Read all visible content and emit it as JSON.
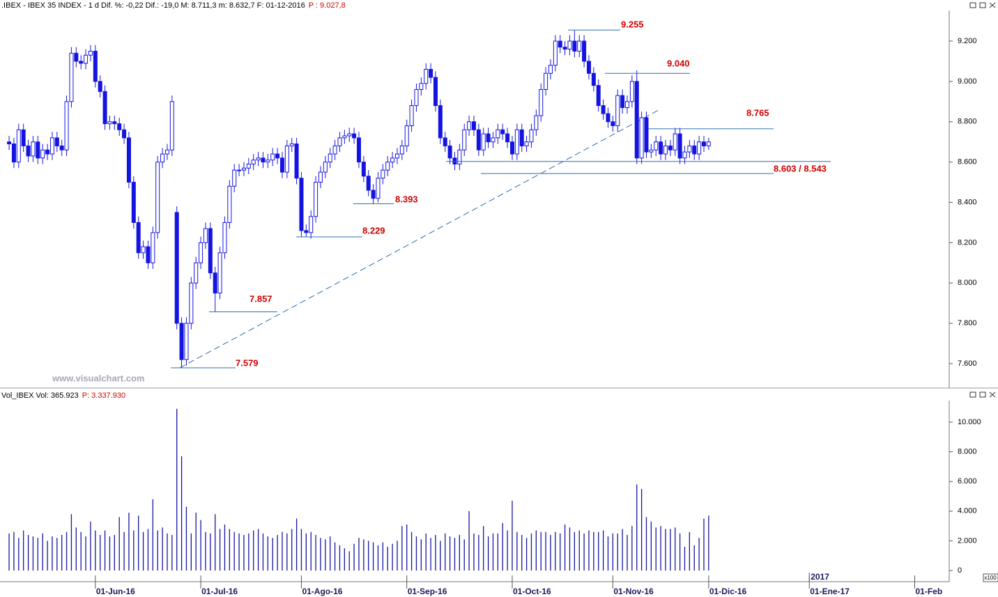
{
  "chart_data": [
    {
      "type": "candlestick",
      "title": ".IBEX - IBEX 35 INDEX - 1 d Dif. %: -0,22 Dif.: -19,0 M: 8.711,3 m: 8.632,7 F: 01-12-2016",
      "title_extra": "P : 9.027,8",
      "watermark": "www.visualchart.com",
      "color": "#1414e0",
      "xlim": [
        -1.9,
        196.2
      ],
      "ylim": [
        7479,
        9352
      ],
      "yticks": [
        {
          "value": 7600,
          "label": "7.600"
        },
        {
          "value": 7800,
          "label": "7.800"
        },
        {
          "value": 8000,
          "label": "8.000"
        },
        {
          "value": 8200,
          "label": "8.200"
        },
        {
          "value": 8400,
          "label": "8.400"
        },
        {
          "value": 8600,
          "label": "8.600"
        },
        {
          "value": 8800,
          "label": "8.800"
        },
        {
          "value": 9000,
          "label": "9.000"
        },
        {
          "value": 9200,
          "label": "9.200"
        }
      ],
      "open": [
        8700,
        8690,
        8600,
        8760,
        8680,
        8630,
        8700,
        8620,
        8660,
        8640,
        8720,
        8680,
        8660,
        8900,
        9140,
        9100,
        9090,
        9130,
        9150,
        9000,
        8950,
        8790,
        8800,
        8790,
        8760,
        8720,
        8500,
        8300,
        8150,
        8180,
        8100,
        8250,
        8600,
        8640,
        8660,
        8350,
        7800,
        7620,
        7800,
        8000,
        8100,
        8200,
        8270,
        8050,
        7950,
        8150,
        8300,
        8480,
        8560,
        8560,
        8570,
        8590,
        8610,
        8620,
        8600,
        8610,
        8640,
        8620,
        8550,
        8680,
        8690,
        8520,
        8260,
        8250,
        8330,
        8500,
        8550,
        8600,
        8640,
        8680,
        8720,
        8730,
        8740,
        8720,
        8600,
        8530,
        8460,
        8420,
        8520,
        8560,
        8600,
        8620,
        8640,
        8680,
        8780,
        8880,
        8960,
        8990,
        9060,
        9020,
        8880,
        8720,
        8680,
        8620,
        8590,
        8660,
        8760,
        8800,
        8760,
        8660,
        8740,
        8700,
        8720,
        8760,
        8740,
        8700,
        8640,
        8760,
        8680,
        8700,
        8760,
        8830,
        8960,
        9040,
        9080,
        9200,
        9170,
        9160,
        9200,
        9150,
        9200,
        9100,
        9040,
        8980,
        8880,
        8840,
        8800,
        8780,
        8930,
        8870,
        8900,
        9000,
        8620,
        8820,
        8650,
        8660,
        8700,
        8640,
        8680,
        8660,
        8740,
        8620,
        8650,
        8680,
        8640,
        8700,
        8680
      ],
      "high": [
        8730,
        8720,
        8790,
        8790,
        8710,
        8730,
        8730,
        8690,
        8690,
        8750,
        8750,
        8710,
        8930,
        9170,
        9170,
        9130,
        9160,
        9180,
        9180,
        9030,
        8980,
        8830,
        8830,
        8820,
        8790,
        8750,
        8530,
        8330,
        8210,
        8210,
        8280,
        8630,
        8670,
        8690,
        8930,
        8380,
        7830,
        7830,
        8030,
        8130,
        8230,
        8300,
        8300,
        8080,
        8180,
        8330,
        8510,
        8590,
        8590,
        8600,
        8620,
        8640,
        8650,
        8650,
        8640,
        8670,
        8670,
        8650,
        8710,
        8720,
        8720,
        8550,
        8290,
        8360,
        8530,
        8580,
        8630,
        8670,
        8710,
        8750,
        8760,
        8770,
        8770,
        8750,
        8630,
        8560,
        8490,
        8550,
        8590,
        8630,
        8650,
        8670,
        8710,
        8810,
        8910,
        8990,
        9020,
        9090,
        9090,
        9050,
        8910,
        8750,
        8710,
        8650,
        8690,
        8790,
        8830,
        8830,
        8790,
        8770,
        8770,
        8750,
        8790,
        8790,
        8770,
        8730,
        8790,
        8790,
        8730,
        8790,
        8860,
        8990,
        9070,
        9110,
        9230,
        9230,
        9200,
        9230,
        9255,
        9230,
        9230,
        9130,
        9070,
        9010,
        8910,
        8870,
        8830,
        8960,
        8960,
        8930,
        9030,
        9055,
        8850,
        8850,
        8690,
        8730,
        8730,
        8710,
        8710,
        8770,
        8770,
        8680,
        8710,
        8710,
        8730,
        8730,
        8720
      ],
      "low": [
        8660,
        8570,
        8570,
        8650,
        8600,
        8600,
        8590,
        8590,
        8610,
        8610,
        8650,
        8630,
        8630,
        8870,
        9070,
        9060,
        9060,
        9100,
        8970,
        8920,
        8760,
        8760,
        8760,
        8730,
        8690,
        8470,
        8270,
        8120,
        8120,
        8070,
        8070,
        8220,
        8570,
        8610,
        8630,
        7770,
        7579,
        7590,
        7770,
        7970,
        8070,
        8170,
        8020,
        7857,
        7920,
        8120,
        8270,
        8450,
        8530,
        8530,
        8540,
        8560,
        8580,
        8570,
        8570,
        8580,
        8590,
        8520,
        8520,
        8650,
        8490,
        8230,
        8229,
        8220,
        8300,
        8470,
        8520,
        8570,
        8610,
        8650,
        8690,
        8700,
        8690,
        8570,
        8500,
        8430,
        8393,
        8400,
        8490,
        8530,
        8570,
        8590,
        8610,
        8650,
        8750,
        8850,
        8930,
        8960,
        8990,
        8850,
        8690,
        8650,
        8590,
        8560,
        8560,
        8630,
        8730,
        8730,
        8630,
        8630,
        8670,
        8670,
        8690,
        8710,
        8670,
        8610,
        8610,
        8650,
        8650,
        8670,
        8730,
        8800,
        8930,
        9010,
        9050,
        9140,
        9130,
        9130,
        9120,
        9120,
        9070,
        9010,
        8950,
        8850,
        8810,
        8770,
        8750,
        8750,
        8840,
        8840,
        8870,
        8590,
        8590,
        8620,
        8620,
        8630,
        8610,
        8610,
        8630,
        8630,
        8590,
        8590,
        8620,
        8610,
        8610,
        8650,
        8660
      ],
      "close": [
        8690,
        8600,
        8760,
        8680,
        8630,
        8700,
        8620,
        8660,
        8640,
        8720,
        8680,
        8660,
        8900,
        9140,
        9100,
        9090,
        9130,
        9150,
        9000,
        8950,
        8790,
        8800,
        8790,
        8760,
        8720,
        8500,
        8300,
        8150,
        8180,
        8100,
        8250,
        8600,
        8640,
        8660,
        8900,
        7800,
        7620,
        7800,
        8000,
        8100,
        8200,
        8270,
        8050,
        7950,
        8150,
        8300,
        8480,
        8560,
        8560,
        8570,
        8590,
        8610,
        8620,
        8600,
        8610,
        8640,
        8620,
        8550,
        8680,
        8690,
        8520,
        8260,
        8250,
        8330,
        8500,
        8550,
        8600,
        8640,
        8680,
        8720,
        8730,
        8740,
        8720,
        8600,
        8530,
        8460,
        8420,
        8520,
        8560,
        8600,
        8620,
        8640,
        8680,
        8780,
        8880,
        8960,
        8990,
        9060,
        9020,
        8880,
        8720,
        8680,
        8620,
        8590,
        8660,
        8760,
        8800,
        8760,
        8660,
        8740,
        8700,
        8720,
        8760,
        8740,
        8700,
        8640,
        8760,
        8680,
        8700,
        8760,
        8830,
        8960,
        9040,
        9080,
        9200,
        9170,
        9160,
        9200,
        9150,
        9200,
        9100,
        9040,
        8980,
        8880,
        8840,
        8800,
        8780,
        8930,
        8870,
        8900,
        9000,
        8620,
        8820,
        8650,
        8660,
        8700,
        8640,
        8680,
        8660,
        8740,
        8620,
        8650,
        8680,
        8640,
        8700,
        8680,
        8700
      ],
      "annotations": [
        {
          "values": [
            9255
          ],
          "label": "9.255"
        },
        {
          "values": [
            9040
          ],
          "label": "9.040"
        },
        {
          "values": [
            8765
          ],
          "label": "8.765"
        },
        {
          "values": [
            8603,
            8543
          ],
          "label": "8.603 / 8.543"
        },
        {
          "values": [
            8393
          ],
          "label": "8.393"
        },
        {
          "values": [
            8229
          ],
          "label": "8.229"
        },
        {
          "values": [
            7857
          ],
          "label": "7.857"
        },
        {
          "values": [
            7579
          ],
          "label": "7.579"
        }
      ]
    },
    {
      "type": "bar",
      "title": "Vol_IBEX Vol: 365.923",
      "title_extra": "P: 3.337.930",
      "unit_label": "x100",
      "color": "#1414a0",
      "xlim": [
        -1.9,
        196.2
      ],
      "ylim": [
        -751,
        11455
      ],
      "yticks": [
        0,
        {
          "value": 2000,
          "label": "2.000"
        },
        {
          "value": 4000,
          "label": "4.000"
        },
        {
          "value": 6000,
          "label": "6.000"
        },
        {
          "value": 8000,
          "label": "8.000"
        },
        {
          "value": 10000,
          "label": "10.000"
        }
      ],
      "xticks": [
        {
          "value": 18,
          "label": "01-Jun-16"
        },
        {
          "value": 40,
          "label": "01-Jul-16"
        },
        {
          "value": 61,
          "label": "01-Ago-16"
        },
        {
          "value": 83,
          "label": "01-Sep-16"
        },
        {
          "value": 105,
          "label": "01-Oct-16"
        },
        {
          "value": 126,
          "label": "01-Nov-16"
        },
        {
          "value": 146,
          "label": "01-Dic-16"
        },
        {
          "value": 167,
          "label": "01-Ene-17"
        },
        {
          "value": 189,
          "label": "01-Feb"
        }
      ],
      "year_marker": {
        "value": 167,
        "label": "2017"
      },
      "values": [
        2500,
        2600,
        2200,
        2700,
        2400,
        2300,
        2200,
        2500,
        2000,
        2300,
        2200,
        2400,
        2600,
        3800,
        2900,
        2600,
        2300,
        3300,
        2700,
        2400,
        2700,
        2300,
        2400,
        3600,
        2600,
        3900,
        2700,
        3700,
        2600,
        2800,
        4800,
        2700,
        2900,
        2500,
        2400,
        10900,
        7700,
        4300,
        2500,
        3900,
        3400,
        2600,
        2500,
        3800,
        2800,
        3100,
        2800,
        2600,
        2500,
        2400,
        2500,
        2700,
        2800,
        2500,
        2300,
        2200,
        2400,
        2600,
        2500,
        2800,
        3500,
        2800,
        2500,
        2600,
        2400,
        2200,
        2100,
        2300,
        1900,
        1700,
        1500,
        1300,
        1800,
        2200,
        2100,
        2000,
        1900,
        1700,
        1900,
        1600,
        1800,
        2000,
        3000,
        3100,
        2600,
        2300,
        2100,
        2500,
        2200,
        2400,
        2000,
        2500,
        2300,
        2200,
        2400,
        2100,
        4000,
        2500,
        2400,
        3000,
        2300,
        2500,
        2500,
        3200,
        2700,
        4700,
        2600,
        2400,
        2200,
        2500,
        2700,
        2600,
        2600,
        2400,
        2600,
        2500,
        3100,
        2900,
        2600,
        2700,
        2500,
        2700,
        2600,
        2600,
        2700,
        2300,
        2500,
        2500,
        2800,
        2400,
        3000,
        5800,
        5500,
        3600,
        3300,
        2900,
        3000,
        2800,
        2800,
        2900,
        2500,
        1600,
        2600,
        1700,
        2200,
        3500,
        3700
      ]
    }
  ]
}
